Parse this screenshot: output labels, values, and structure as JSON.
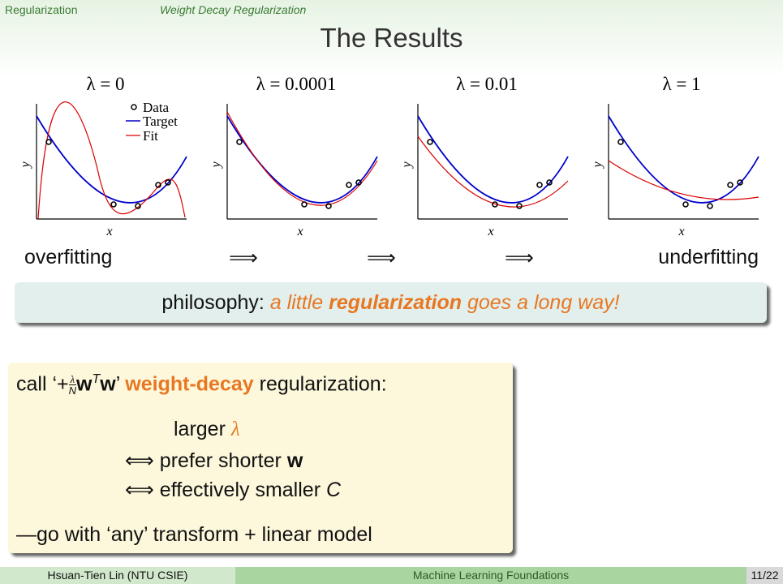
{
  "header": {
    "section": "Regularization",
    "subsection": "Weight Decay Regularization"
  },
  "title": "The Results",
  "panels": [
    {
      "label": "λ = 0"
    },
    {
      "label": "λ = 0.0001"
    },
    {
      "label": "λ = 0.01"
    },
    {
      "label": "λ = 1"
    }
  ],
  "legend": [
    "Data",
    "Target",
    "Fit"
  ],
  "axis_labels": {
    "x": "x",
    "y": "y"
  },
  "row": {
    "left": "overfitting",
    "arrows": [
      "⟹",
      "⟹",
      "⟹"
    ],
    "right": "underfitting"
  },
  "philosophy": {
    "lead": "philosophy:",
    "part1": "a little",
    "bold": "regularization",
    "part2": "goes a long way!"
  },
  "call": {
    "pre": "call ‘+",
    "frac_num": "λ",
    "frac_den": "N",
    "w1": "w",
    "sup": "T",
    "w2": "w",
    "close": "’",
    "highlight": "weight-decay",
    "post": "regularization:",
    "lines": [
      {
        "text": "larger",
        "sym": "λ"
      },
      {
        "arrow": "⟺",
        "text": "prefer shorter",
        "sym": "w"
      },
      {
        "arrow": "⟺",
        "text": "effectively smaller",
        "sym": "C"
      }
    ],
    "footer": "—go with ‘any’ transform + linear model"
  },
  "footer": {
    "author": "Hsuan-Tien Lin (NTU CSIE)",
    "course": "Machine Learning Foundations",
    "page": "11/22"
  }
}
